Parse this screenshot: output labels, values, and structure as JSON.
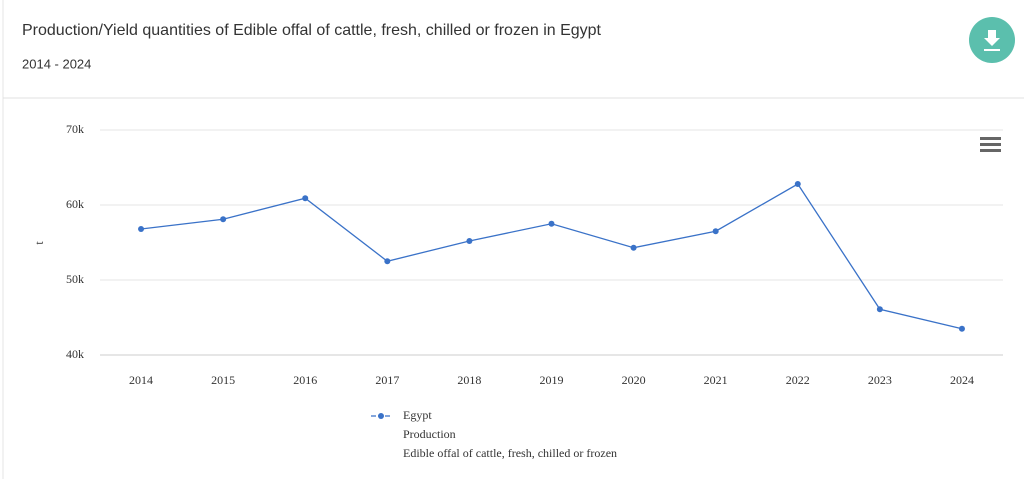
{
  "chart_data": {
    "type": "line",
    "title": "Production/Yield quantities of Edible offal of cattle, fresh, chilled or frozen in Egypt",
    "subtitle": "2014 - 2024",
    "y_label": "t",
    "categories": [
      "2014",
      "2015",
      "2016",
      "2017",
      "2018",
      "2019",
      "2020",
      "2021",
      "2022",
      "2023",
      "2024"
    ],
    "series": [
      {
        "name": "Egypt",
        "element": "Production",
        "item": "Edible offal of cattle, fresh, chilled or frozen",
        "color": "#3a72c8",
        "values": [
          56800,
          58100,
          60900,
          52500,
          55200,
          57500,
          54300,
          56500,
          62800,
          46100,
          43500
        ]
      }
    ],
    "ylim": [
      40000,
      70000
    ],
    "yticks": [
      {
        "value": 40000,
        "label": "40k"
      },
      {
        "value": 50000,
        "label": "50k"
      },
      {
        "value": 60000,
        "label": "60k"
      },
      {
        "value": 70000,
        "label": "70k"
      }
    ],
    "grid": true
  }
}
